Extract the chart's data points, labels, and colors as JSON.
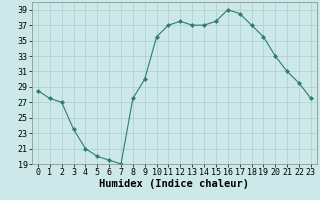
{
  "x": [
    0,
    1,
    2,
    3,
    4,
    5,
    6,
    7,
    8,
    9,
    10,
    11,
    12,
    13,
    14,
    15,
    16,
    17,
    18,
    19,
    20,
    21,
    22,
    23
  ],
  "y": [
    28.5,
    27.5,
    27,
    23.5,
    21,
    20,
    19.5,
    19,
    27.5,
    30,
    35.5,
    37,
    37.5,
    37,
    37,
    37.5,
    39,
    38.5,
    37,
    35.5,
    33,
    31,
    29.5,
    27.5
  ],
  "line_color": "#2e7d6e",
  "marker": "D",
  "marker_size": 2.0,
  "bg_color": "#cce8e8",
  "grid_color": "#aacfcf",
  "xlabel": "Humidex (Indice chaleur)",
  "xlim": [
    -0.5,
    23.5
  ],
  "ylim": [
    19,
    40
  ],
  "yticks": [
    19,
    21,
    23,
    25,
    27,
    29,
    31,
    33,
    35,
    37,
    39
  ],
  "xticks": [
    0,
    1,
    2,
    3,
    4,
    5,
    6,
    7,
    8,
    9,
    10,
    11,
    12,
    13,
    14,
    15,
    16,
    17,
    18,
    19,
    20,
    21,
    22,
    23
  ],
  "tick_label_fontsize": 6.0,
  "xlabel_fontsize": 7.5
}
